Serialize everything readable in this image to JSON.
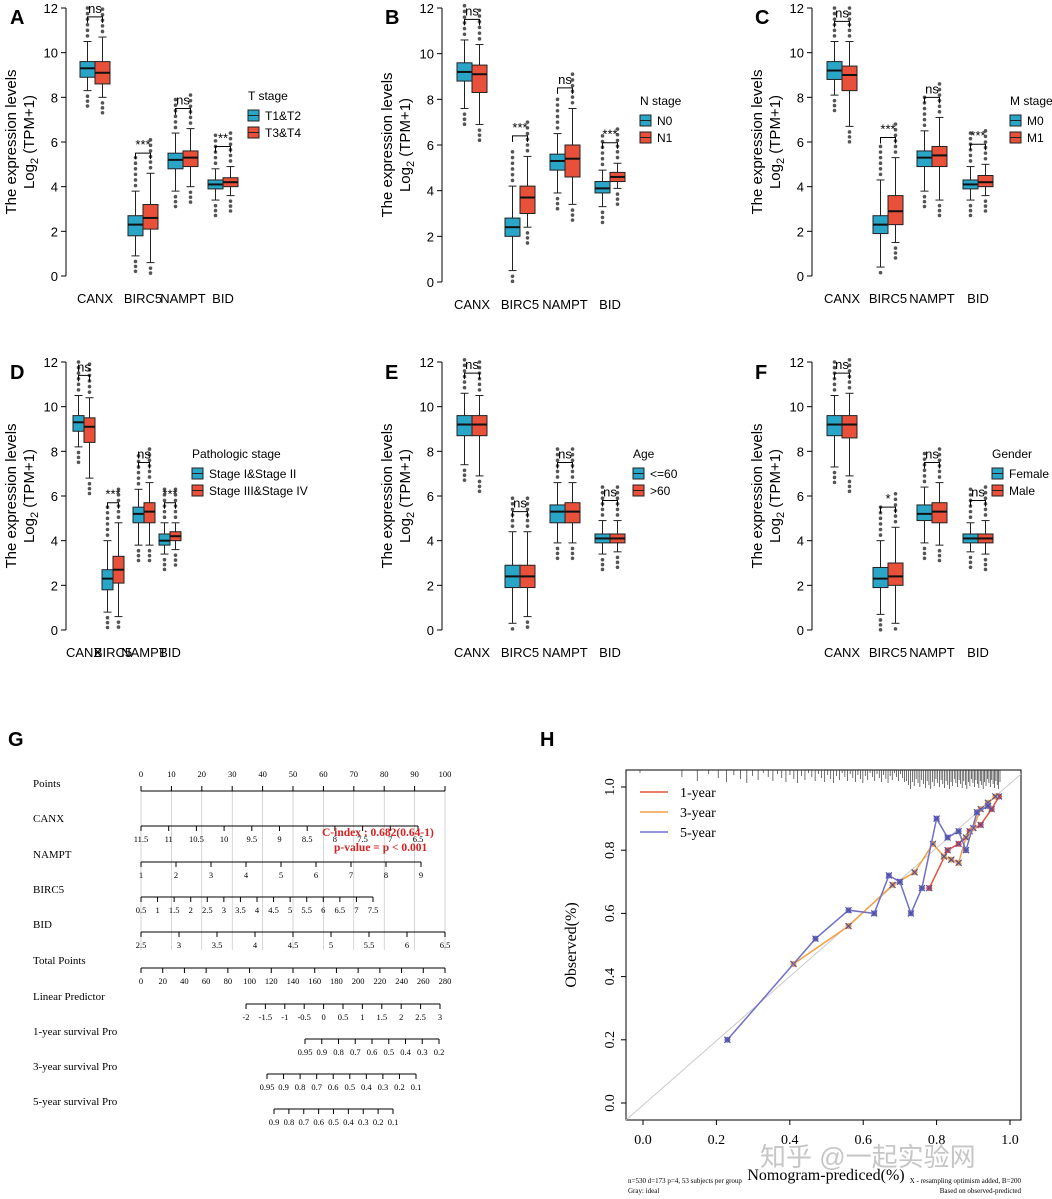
{
  "chart_data": [
    {
      "panel": "A",
      "type": "box",
      "ylabel_line1": "The expression levels",
      "ylabel_pre": "Log",
      "ylabel_sub": "2",
      "ylabel_post": " (TPM+1)",
      "categories": [
        "CANX",
        "BIRC5",
        "NAMPT",
        "BID"
      ],
      "ylim": [
        0,
        12
      ],
      "yticks": [
        "0",
        "2",
        "4",
        "6",
        "8",
        "10",
        "12"
      ],
      "legend_title": "T stage",
      "legend_pos": "right",
      "series": [
        {
          "name": "T1&T2",
          "color": "#29a5c8",
          "boxes": [
            [
              8.3,
              8.9,
              9.3,
              9.6,
              10.5
            ],
            [
              0.9,
              1.8,
              2.3,
              2.7,
              3.8
            ],
            [
              3.8,
              4.8,
              5.2,
              5.5,
              6.4
            ],
            [
              3.4,
              3.9,
              4.1,
              4.3,
              4.8
            ]
          ]
        },
        {
          "name": "T3&T4",
          "color": "#e8503a",
          "boxes": [
            [
              8.0,
              8.6,
              9.1,
              9.6,
              10.7
            ],
            [
              0.6,
              2.1,
              2.6,
              3.2,
              4.6
            ],
            [
              4.0,
              4.9,
              5.3,
              5.6,
              6.6
            ],
            [
              3.6,
              4.0,
              4.2,
              4.4,
              4.9
            ]
          ]
        }
      ],
      "significance": [
        "ns",
        "***",
        "ns",
        "**"
      ]
    },
    {
      "panel": "B",
      "type": "box",
      "ylabel_line1": "The expression levels",
      "ylabel_pre": "Log",
      "ylabel_sub": "2",
      "ylabel_post": " (TPM+1)",
      "categories": [
        "CANX",
        "BIRC5",
        "NAMPT",
        "BID"
      ],
      "ylim": [
        0,
        12
      ],
      "yticks": [
        "0",
        "2",
        "4",
        "6",
        "8",
        "10",
        "12"
      ],
      "legend_title": "N stage",
      "legend_pos": "right",
      "series": [
        {
          "name": "N0",
          "color": "#29a5c8",
          "boxes": [
            [
              7.6,
              8.8,
              9.2,
              9.6,
              10.6
            ],
            [
              0.5,
              2.0,
              2.4,
              2.8,
              4.2
            ],
            [
              3.9,
              4.9,
              5.3,
              5.6,
              6.5
            ],
            [
              3.3,
              3.9,
              4.1,
              4.4,
              4.9
            ]
          ]
        },
        {
          "name": "N1",
          "color": "#e8503a",
          "boxes": [
            [
              6.9,
              8.3,
              9.1,
              9.5,
              10.4
            ],
            [
              2.4,
              3.0,
              3.7,
              4.2,
              5.5
            ],
            [
              3.4,
              4.6,
              5.4,
              6.0,
              7.6
            ],
            [
              4.1,
              4.4,
              4.6,
              4.8,
              5.2
            ]
          ]
        }
      ],
      "significance": [
        "ns",
        "***",
        "ns",
        "***"
      ]
    },
    {
      "panel": "C",
      "type": "box",
      "ylabel_line1": "The expression levels",
      "ylabel_pre": "Log",
      "ylabel_sub": "2",
      "ylabel_post": " (TPM+1)",
      "categories": [
        "CANX",
        "BIRC5",
        "NAMPT",
        "BID"
      ],
      "ylim": [
        0,
        12
      ],
      "yticks": [
        "0",
        "2",
        "4",
        "6",
        "8",
        "10",
        "12"
      ],
      "legend_title": "M stage",
      "legend_pos": "right",
      "series": [
        {
          "name": "M0",
          "color": "#29a5c8",
          "boxes": [
            [
              8.1,
              8.8,
              9.2,
              9.6,
              10.5
            ],
            [
              0.4,
              1.9,
              2.3,
              2.7,
              4.3
            ],
            [
              3.8,
              4.9,
              5.3,
              5.6,
              6.5
            ],
            [
              3.4,
              3.9,
              4.1,
              4.3,
              4.9
            ]
          ]
        },
        {
          "name": "M1",
          "color": "#e8503a",
          "boxes": [
            [
              6.7,
              8.3,
              9.0,
              9.4,
              10.5
            ],
            [
              1.5,
              2.3,
              2.9,
              3.6,
              5.3
            ],
            [
              3.4,
              4.9,
              5.4,
              5.8,
              7.1
            ],
            [
              3.6,
              4.0,
              4.2,
              4.5,
              5.0
            ]
          ]
        }
      ],
      "significance": [
        "ns",
        "***",
        "ns",
        "***"
      ]
    },
    {
      "panel": "D",
      "type": "box",
      "ylabel_line1": "The expression levels",
      "ylabel_pre": "Log",
      "ylabel_sub": "2",
      "ylabel_post": " (TPM+1)",
      "categories": [
        "CANX",
        "BIRC5",
        "NAMPT",
        "BID"
      ],
      "ylim": [
        0,
        12
      ],
      "yticks": [
        "0",
        "2",
        "4",
        "6",
        "8",
        "10",
        "12"
      ],
      "legend_title": "Pathologic stage",
      "legend_pos": "right",
      "series": [
        {
          "name": "Stage I&Stage II",
          "color": "#29a5c8",
          "boxes": [
            [
              8.2,
              8.9,
              9.3,
              9.6,
              10.5
            ],
            [
              0.8,
              1.8,
              2.3,
              2.7,
              4.0
            ],
            [
              3.8,
              4.8,
              5.2,
              5.5,
              6.3
            ],
            [
              3.4,
              3.8,
              4.0,
              4.3,
              4.8
            ]
          ]
        },
        {
          "name": "Stage III&Stage IV",
          "color": "#e8503a",
          "boxes": [
            [
              6.8,
              8.4,
              9.1,
              9.5,
              10.4
            ],
            [
              0.6,
              2.1,
              2.7,
              3.3,
              4.8
            ],
            [
              3.8,
              4.8,
              5.3,
              5.7,
              6.6
            ],
            [
              3.6,
              4.0,
              4.2,
              4.4,
              4.8
            ]
          ]
        }
      ],
      "significance": [
        "ns",
        "***",
        "ns",
        "***"
      ]
    },
    {
      "panel": "E",
      "type": "box",
      "ylabel_line1": "The expression levels",
      "ylabel_pre": "Log",
      "ylabel_sub": "2",
      "ylabel_post": " (TPM+1)",
      "categories": [
        "CANX",
        "BIRC5",
        "NAMPT",
        "BID"
      ],
      "ylim": [
        0,
        12
      ],
      "yticks": [
        "0",
        "2",
        "4",
        "6",
        "8",
        "10",
        "12"
      ],
      "legend_title": "Age",
      "legend_pos": "right",
      "series": [
        {
          "name": "<=60",
          "color": "#29a5c8",
          "boxes": [
            [
              7.4,
              8.7,
              9.2,
              9.6,
              10.6
            ],
            [
              0.3,
              1.9,
              2.4,
              2.9,
              4.4
            ],
            [
              3.9,
              4.8,
              5.3,
              5.6,
              6.6
            ],
            [
              3.4,
              3.9,
              4.1,
              4.3,
              4.9
            ]
          ]
        },
        {
          "name": ">60",
          "color": "#e8503a",
          "boxes": [
            [
              6.9,
              8.7,
              9.2,
              9.6,
              10.5
            ],
            [
              0.6,
              1.9,
              2.4,
              2.9,
              4.4
            ],
            [
              3.9,
              4.8,
              5.3,
              5.7,
              6.6
            ],
            [
              3.5,
              3.9,
              4.1,
              4.3,
              4.9
            ]
          ]
        }
      ],
      "significance": [
        "ns",
        "ns",
        "ns",
        "ns"
      ]
    },
    {
      "panel": "F",
      "type": "box",
      "ylabel_line1": "The expression levels",
      "ylabel_pre": "Log",
      "ylabel_sub": "2",
      "ylabel_post": " (TPM+1)",
      "categories": [
        "CANX",
        "BIRC5",
        "NAMPT",
        "BID"
      ],
      "ylim": [
        0,
        12
      ],
      "yticks": [
        "0",
        "2",
        "4",
        "6",
        "8",
        "10",
        "12"
      ],
      "legend_title": "Gender",
      "legend_pos": "right",
      "series": [
        {
          "name": "Female",
          "color": "#29a5c8",
          "boxes": [
            [
              7.3,
              8.7,
              9.2,
              9.6,
              10.5
            ],
            [
              0.7,
              1.9,
              2.3,
              2.8,
              4.0
            ],
            [
              3.9,
              4.9,
              5.2,
              5.6,
              6.4
            ],
            [
              3.5,
              3.9,
              4.1,
              4.3,
              4.8
            ]
          ]
        },
        {
          "name": "Male",
          "color": "#e8503a",
          "boxes": [
            [
              6.9,
              8.6,
              9.2,
              9.6,
              10.6
            ],
            [
              0.3,
              2.0,
              2.4,
              3.0,
              4.6
            ],
            [
              3.8,
              4.8,
              5.3,
              5.7,
              6.6
            ],
            [
              3.4,
              3.9,
              4.1,
              4.3,
              4.9
            ]
          ]
        }
      ],
      "significance": [
        "ns",
        "*",
        "ns",
        "ns"
      ]
    },
    {
      "panel": "G",
      "type": "nomogram",
      "rows": [
        {
          "label": "Points",
          "ticks": [
            "0",
            "10",
            "20",
            "30",
            "40",
            "50",
            "60",
            "70",
            "80",
            "90",
            "100"
          ]
        },
        {
          "label": "CANX",
          "ticks": [
            "11.5",
            "11",
            "10.5",
            "10",
            "9.5",
            "9",
            "8.5",
            "8",
            "7.5",
            "7",
            "6.5"
          ]
        },
        {
          "label": "NAMPT",
          "ticks": [
            "1",
            "2",
            "3",
            "4",
            "5",
            "6",
            "7",
            "8",
            "9"
          ]
        },
        {
          "label": "BIRC5",
          "ticks": [
            "0.5",
            "1",
            "1.5",
            "2",
            "2.5",
            "3",
            "3.5",
            "4",
            "4.5",
            "5",
            "5.5",
            "6",
            "6.5",
            "7",
            "7.5"
          ]
        },
        {
          "label": "BID",
          "ticks": [
            "2.5",
            "3",
            "3.5",
            "4",
            "4.5",
            "5",
            "5.5",
            "6",
            "6.5"
          ]
        },
        {
          "label": "Total Points",
          "ticks": [
            "0",
            "20",
            "40",
            "60",
            "80",
            "100",
            "120",
            "140",
            "160",
            "180",
            "200",
            "220",
            "240",
            "260",
            "280"
          ]
        },
        {
          "label": "Linear Predictor",
          "ticks": [
            "-2",
            "-1.5",
            "-1",
            "-0.5",
            "0",
            "0.5",
            "1",
            "1.5",
            "2",
            "2.5",
            "3"
          ]
        },
        {
          "label": "1-year survival Pro",
          "ticks": [
            "0.95",
            "0.9",
            "0.8",
            "0.7",
            "0.6",
            "0.5",
            "0.4",
            "0.3",
            "0.2"
          ]
        },
        {
          "label": "3-year survival Pro",
          "ticks": [
            "0.95",
            "0.9",
            "0.8",
            "0.7",
            "0.6",
            "0.5",
            "0.4",
            "0.3",
            "0.2",
            "0.1"
          ]
        },
        {
          "label": "5-year survival Pro",
          "ticks": [
            "0.9",
            "0.8",
            "0.7",
            "0.6",
            "0.5",
            "0.4",
            "0.3",
            "0.2",
            "0.1"
          ]
        }
      ],
      "annotation_cindex": "C-index : 0.682(0.64-1)",
      "annotation_pvalue": "p-value = p < 0.001",
      "annotation_color": "#d42020"
    },
    {
      "panel": "H",
      "type": "line",
      "xlabel": "Nomogram-prediced(%)",
      "ylabel": "Observed(%)",
      "xlim": [
        0,
        1
      ],
      "ylim": [
        0,
        1
      ],
      "xticks": [
        "0.0",
        "0.2",
        "0.4",
        "0.6",
        "0.8",
        "1.0"
      ],
      "yticks": [
        "0.0",
        "0.2",
        "0.4",
        "0.6",
        "0.8",
        "1.0"
      ],
      "series": [
        {
          "name": "1-year",
          "color": "#e8503a",
          "x": [
            0.78,
            0.83,
            0.86,
            0.89,
            0.92,
            0.95,
            0.97
          ],
          "y": [
            0.68,
            0.8,
            0.82,
            0.86,
            0.88,
            0.93,
            0.97
          ]
        },
        {
          "name": "3-year",
          "color": "#f0a040",
          "x": [
            0.41,
            0.56,
            0.68,
            0.74,
            0.79,
            0.82,
            0.84,
            0.86,
            0.88,
            0.9,
            0.92,
            0.94,
            0.96
          ],
          "y": [
            0.44,
            0.56,
            0.69,
            0.73,
            0.82,
            0.78,
            0.77,
            0.76,
            0.84,
            0.87,
            0.93,
            0.95,
            0.97
          ]
        },
        {
          "name": "5-year",
          "color": "#7070c8",
          "x": [
            0.23,
            0.47,
            0.56,
            0.63,
            0.67,
            0.7,
            0.73,
            0.76,
            0.8,
            0.83,
            0.86,
            0.88,
            0.91,
            0.94
          ],
          "y": [
            0.2,
            0.52,
            0.61,
            0.6,
            0.72,
            0.7,
            0.6,
            0.68,
            0.9,
            0.84,
            0.86,
            0.8,
            0.92,
            0.94
          ]
        }
      ],
      "ideal_label": "Gray: ideal",
      "foot_left": "n=530 d=173 p=4, 53 subjects per group",
      "foot_right_1": "X - resampling optimism added, B=200",
      "foot_right_2": "Based on observed-predicted"
    }
  ],
  "watermark": "知乎 @一起实验网"
}
